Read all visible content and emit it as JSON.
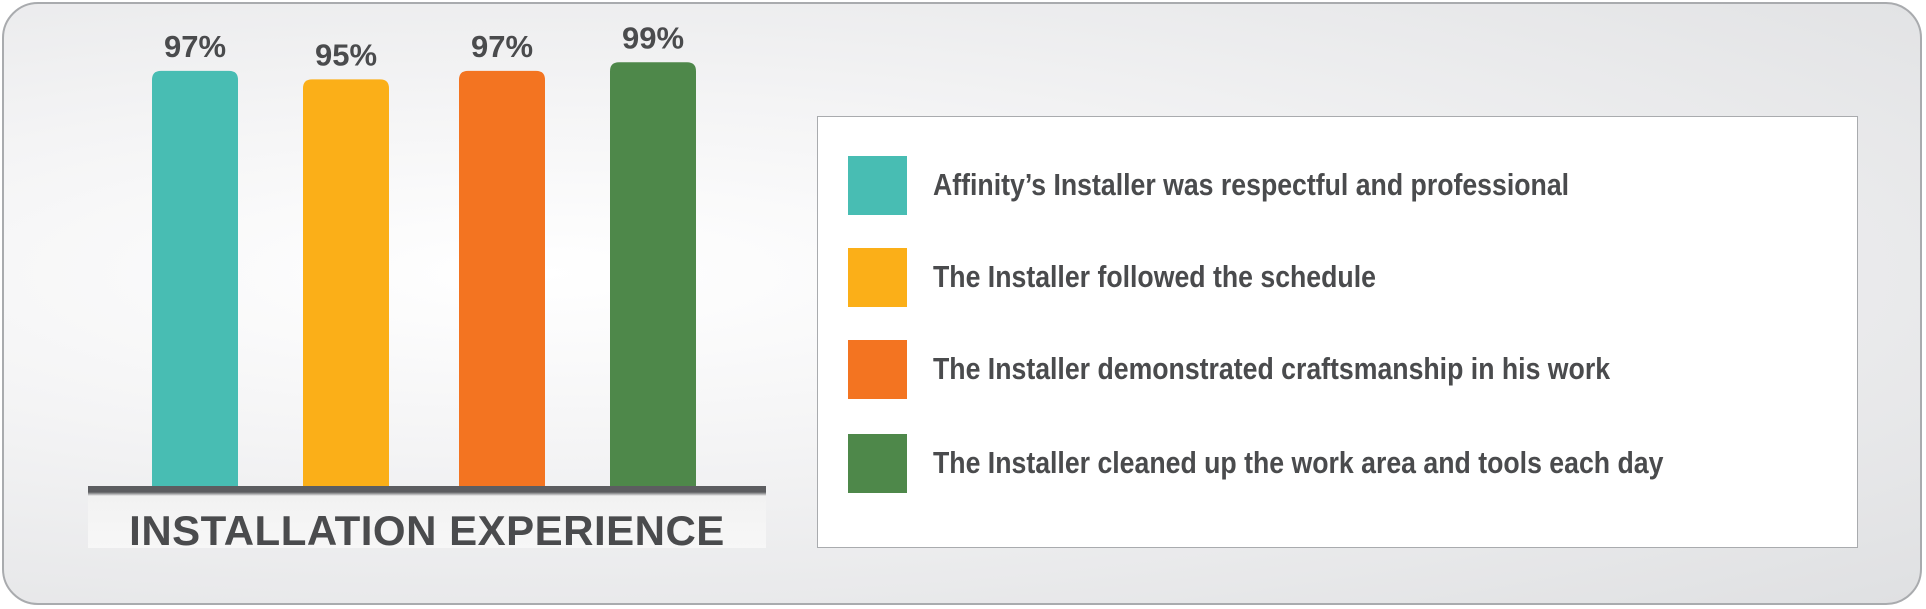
{
  "chart_data": {
    "type": "bar",
    "title": "INSTALLATION EXPERIENCE",
    "categories": [
      "Affinity’s Installer was respectful and professional",
      "The Installer followed the schedule",
      "The Installer demonstrated craftsmanship in his work",
      "The Installer cleaned up the work area and tools each day"
    ],
    "values": [
      97,
      95,
      97,
      99
    ],
    "value_labels": [
      "97%",
      "95%",
      "97%",
      "99%"
    ],
    "colors": [
      "#48bdb3",
      "#fbaf18",
      "#f37421",
      "#4e884a"
    ],
    "ylim": [
      0,
      100
    ],
    "grid": false,
    "legend": "right"
  }
}
